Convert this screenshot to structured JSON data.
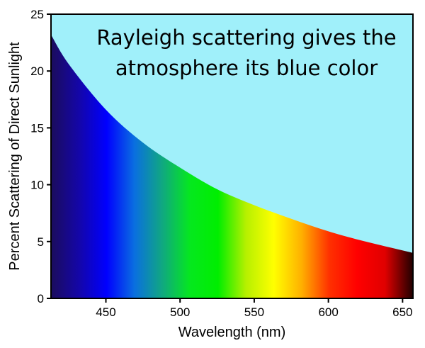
{
  "chart_data": {
    "type": "area",
    "title": "",
    "annotation_lines": [
      "Rayleigh scattering gives the",
      "atmosphere its blue color"
    ],
    "xlabel": "Wavelength (nm)",
    "ylabel": "Percent Scattering of Direct Sunlight",
    "xlim": [
      413,
      657
    ],
    "ylim": [
      0,
      25
    ],
    "x_ticks": [
      450,
      500,
      550,
      600,
      650
    ],
    "x_tick_labels": [
      "450",
      "500",
      "550",
      "600",
      "650"
    ],
    "y_ticks": [
      0,
      5,
      10,
      15,
      20,
      25
    ],
    "y_tick_labels": [
      "0",
      "5",
      "10",
      "15",
      "20",
      "25"
    ],
    "x": [
      413,
      425,
      450,
      475,
      500,
      525,
      550,
      575,
      600,
      625,
      657
    ],
    "y": [
      23.2,
      20.6,
      16.6,
      13.7,
      11.5,
      9.6,
      8.2,
      7.0,
      5.9,
      5.0,
      4.0
    ],
    "grid": false,
    "colors": {
      "sky": "#a0f0fa",
      "spectrum": [
        "#1b0c5c",
        "#1406a8",
        "#0000ff",
        "#0a6fe0",
        "#10a880",
        "#05e81e",
        "#00ee00",
        "#b6f000",
        "#ffff00",
        "#ffb000",
        "#ff3000",
        "#ff0000",
        "#e00000",
        "#200000"
      ]
    }
  }
}
